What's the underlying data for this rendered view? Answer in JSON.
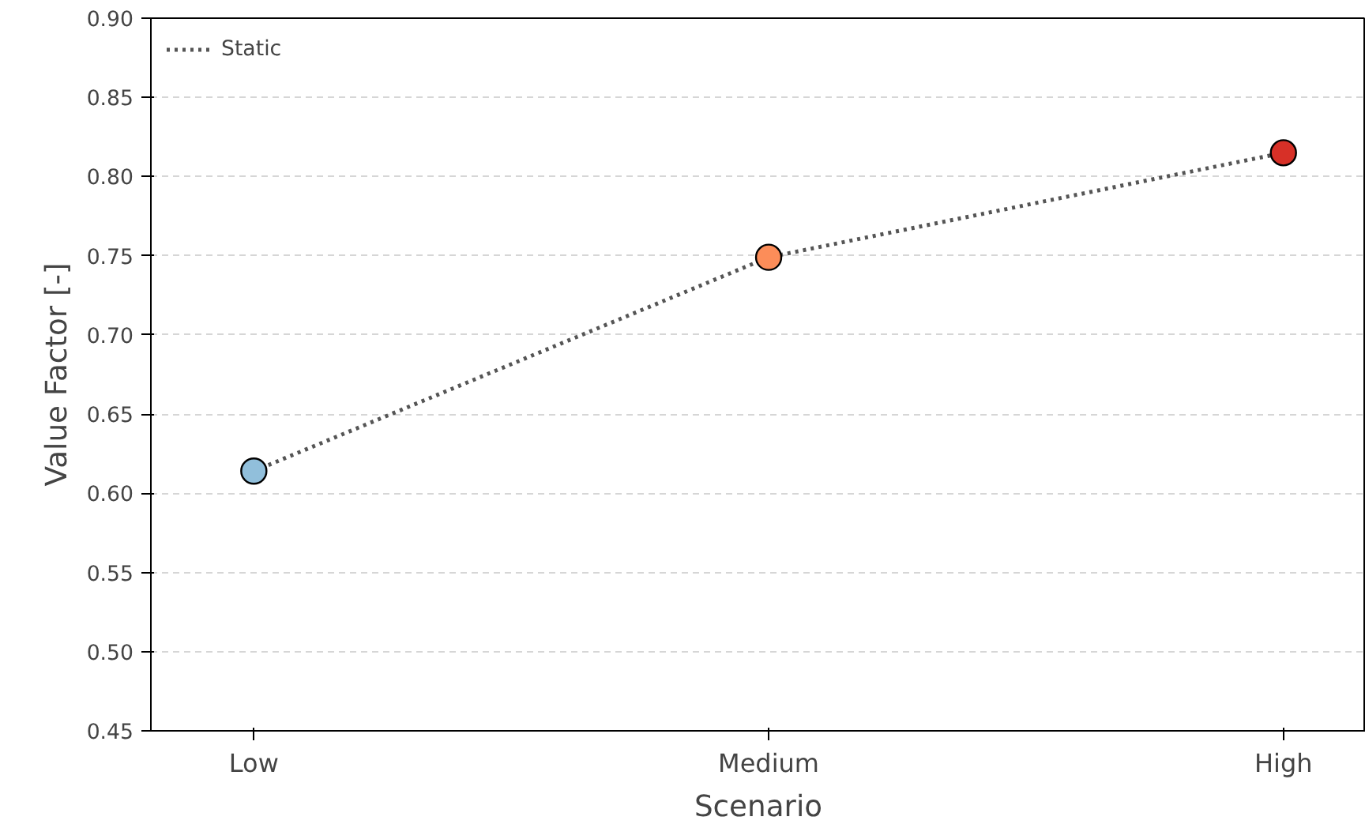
{
  "chart_data": {
    "type": "line",
    "xlabel": "Scenario",
    "ylabel": "Value Factor [-]",
    "categories": [
      "Low",
      "Medium",
      "High"
    ],
    "series": [
      {
        "name": "Static",
        "color": "#555555",
        "line_style": "dotted",
        "marker": "none",
        "values": [
          0.614,
          0.749,
          0.815
        ]
      },
      {
        "type": "scatter",
        "marker": "circle",
        "colors": [
          "#91bfdb",
          "#fc8d59",
          "#d73027"
        ],
        "values": [
          0.614,
          0.749,
          0.815
        ]
      }
    ],
    "ylim": [
      0.45,
      0.9
    ],
    "yticks": [
      0.45,
      {
        "value": 0.5,
        "label": "0.50"
      },
      0.55,
      {
        "value": 0.6,
        "label": "0.60"
      },
      0.65,
      {
        "value": 0.7,
        "label": "0.70"
      },
      0.75,
      {
        "value": 0.8,
        "label": "0.80"
      },
      0.85,
      {
        "value": 0.9,
        "label": "0.90"
      }
    ],
    "grid": "y",
    "legend": "top left"
  }
}
